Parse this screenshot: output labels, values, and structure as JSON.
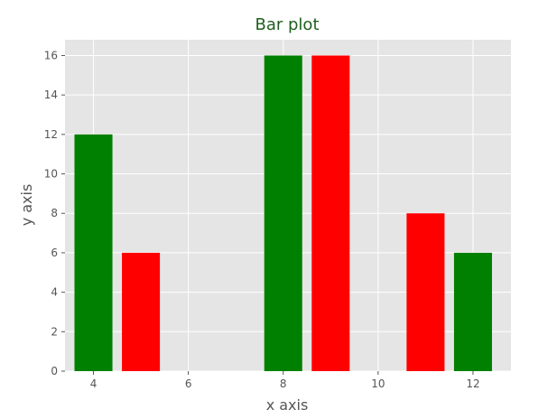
{
  "chart_data": {
    "type": "bar",
    "title": "Bar plot",
    "xlabel": "x axis",
    "ylabel": "y axis",
    "xlim": [
      3.4,
      12.8
    ],
    "ylim": [
      0,
      16.8
    ],
    "x_ticks": [
      4,
      6,
      8,
      10,
      12
    ],
    "y_ticks": [
      0,
      2,
      4,
      6,
      8,
      10,
      12,
      14,
      16
    ],
    "grid": true,
    "bar_width": 0.8,
    "bars": [
      {
        "x": 4,
        "value": 12,
        "color": "#008000"
      },
      {
        "x": 5,
        "value": 6,
        "color": "#ff0000"
      },
      {
        "x": 8,
        "value": 16,
        "color": "#008000"
      },
      {
        "x": 9,
        "value": 16,
        "color": "#ff0000"
      },
      {
        "x": 11,
        "value": 8,
        "color": "#ff0000"
      },
      {
        "x": 12,
        "value": 6,
        "color": "#008000"
      }
    ],
    "plot_background": "#e5e5e5"
  }
}
